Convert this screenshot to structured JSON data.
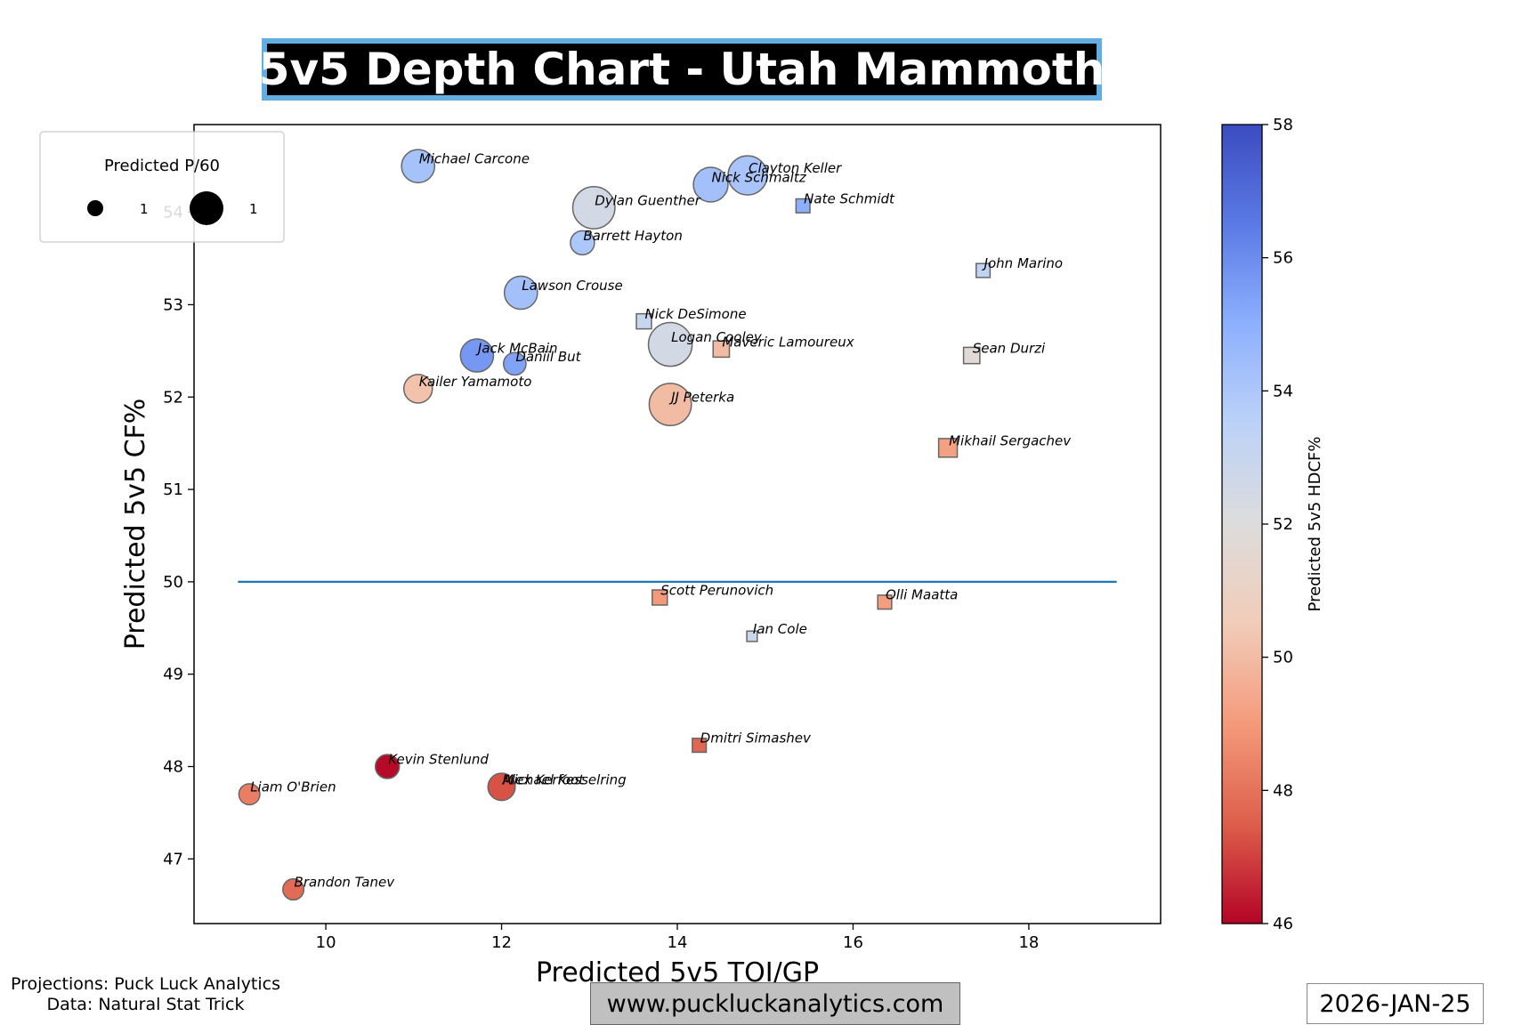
{
  "header": {
    "title": "5v5 Depth Chart - Utah Mammoth"
  },
  "footer": {
    "credit_line1": "Projections: Puck Luck Analytics",
    "credit_line2": "Data: Natural Stat Trick",
    "url": "www.puckluckanalytics.com",
    "date": "2026-JAN-25"
  },
  "chart_data": {
    "type": "scatter",
    "xlabel": "Predicted 5v5 TOI/GP",
    "ylabel": "Predicted 5v5 CF%",
    "xlim": [
      8.5,
      19.5
    ],
    "ylim": [
      46.3,
      54.95
    ],
    "xticks": [
      10,
      12,
      14,
      16,
      18
    ],
    "yticks": [
      47,
      48,
      49,
      50,
      51,
      52,
      53,
      54
    ],
    "grid": false,
    "reference_line": {
      "y": 50,
      "x_from": 9.0,
      "x_to": 19.0,
      "color": "#1f77b4"
    },
    "colorbar": {
      "label": "Predicted 5v5 HDCF%",
      "min": 46,
      "max": 58,
      "ticks": [
        46,
        48,
        50,
        52,
        54,
        56,
        58
      ],
      "colormap": "coolwarm"
    },
    "legend": {
      "title": "Predicted P/60",
      "placement": "top-left",
      "entries": [
        {
          "label": "1",
          "marker": "small-circle"
        },
        {
          "label": "1",
          "marker": "large-circle"
        }
      ]
    },
    "marker_shapes": {
      "circle": "forward",
      "square": "defense"
    },
    "players": [
      {
        "name": "Michael Carcone",
        "toi": 11.05,
        "cf": 54.5,
        "hdcf": 54.2,
        "p60": 1.6,
        "shape": "circle"
      },
      {
        "name": "Clayton Keller",
        "toi": 14.8,
        "cf": 54.4,
        "hdcf": 54.1,
        "p60": 2.0,
        "shape": "circle"
      },
      {
        "name": "Nick Schmaltz",
        "toi": 14.38,
        "cf": 54.3,
        "hdcf": 54.3,
        "p60": 1.7,
        "shape": "circle"
      },
      {
        "name": "Dylan Guenther",
        "toi": 13.05,
        "cf": 54.05,
        "hdcf": 52.5,
        "p60": 2.2,
        "shape": "circle"
      },
      {
        "name": "Nate Schmidt",
        "toi": 15.43,
        "cf": 54.07,
        "hdcf": 55.0,
        "p60": 0.6,
        "shape": "square"
      },
      {
        "name": "Barrett Hayton",
        "toi": 12.92,
        "cf": 53.67,
        "hdcf": 54.0,
        "p60": 1.0,
        "shape": "circle"
      },
      {
        "name": "John Marino",
        "toi": 17.48,
        "cf": 53.37,
        "hdcf": 53.3,
        "p60": 0.6,
        "shape": "square"
      },
      {
        "name": "Lawson Crouse",
        "toi": 12.22,
        "cf": 53.13,
        "hdcf": 54.3,
        "p60": 1.6,
        "shape": "circle"
      },
      {
        "name": "Nick DeSimone",
        "toi": 13.62,
        "cf": 52.82,
        "hdcf": 53.0,
        "p60": 0.7,
        "shape": "square"
      },
      {
        "name": "Logan Cooley",
        "toi": 13.92,
        "cf": 52.57,
        "hdcf": 52.5,
        "p60": 2.3,
        "shape": "circle"
      },
      {
        "name": "Maveric Lamoureux",
        "toi": 14.5,
        "cf": 52.52,
        "hdcf": 50.0,
        "p60": 0.8,
        "shape": "square"
      },
      {
        "name": "Jack McBain",
        "toi": 11.72,
        "cf": 52.45,
        "hdcf": 55.7,
        "p60": 1.6,
        "shape": "circle"
      },
      {
        "name": "Sean Durzi",
        "toi": 17.35,
        "cf": 52.45,
        "hdcf": 51.7,
        "p60": 0.8,
        "shape": "square"
      },
      {
        "name": "Daniil But",
        "toi": 12.15,
        "cf": 52.36,
        "hdcf": 55.4,
        "p60": 0.9,
        "shape": "circle"
      },
      {
        "name": "Kailer Yamamoto",
        "toi": 11.05,
        "cf": 52.09,
        "hdcf": 50.2,
        "p60": 1.3,
        "shape": "circle"
      },
      {
        "name": "JJ Peterka",
        "toi": 13.92,
        "cf": 51.92,
        "hdcf": 50.0,
        "p60": 2.2,
        "shape": "circle"
      },
      {
        "name": "Mikhail Sergachev",
        "toi": 17.08,
        "cf": 51.45,
        "hdcf": 49.2,
        "p60": 1.0,
        "shape": "square"
      },
      {
        "name": "Scott Perunovich",
        "toi": 13.8,
        "cf": 49.83,
        "hdcf": 49.0,
        "p60": 0.7,
        "shape": "square"
      },
      {
        "name": "Olli Maatta",
        "toi": 16.36,
        "cf": 49.78,
        "hdcf": 49.1,
        "p60": 0.6,
        "shape": "square"
      },
      {
        "name": "Ian Cole",
        "toi": 14.85,
        "cf": 49.41,
        "hdcf": 52.8,
        "p60": 0.3,
        "shape": "square"
      },
      {
        "name": "Dmitri Simashev",
        "toi": 14.25,
        "cf": 48.23,
        "hdcf": 47.7,
        "p60": 0.6,
        "shape": "square"
      },
      {
        "name": "Kevin Stenlund",
        "toi": 10.7,
        "cf": 48.0,
        "hdcf": 46.1,
        "p60": 1.0,
        "shape": "circle"
      },
      {
        "name": "Alex Kerfoot",
        "toi": 12.0,
        "cf": 47.78,
        "hdcf": 47.7,
        "p60": 1.2,
        "shape": "circle"
      },
      {
        "name": "Michael Kesselring",
        "toi": 12.0,
        "cf": 47.78,
        "hdcf": 47.3,
        "p60": 1.2,
        "shape": "circle"
      },
      {
        "name": "Liam O'Brien",
        "toi": 9.13,
        "cf": 47.7,
        "hdcf": 48.3,
        "p60": 0.8,
        "shape": "circle"
      },
      {
        "name": "Brandon Tanev",
        "toi": 9.63,
        "cf": 46.67,
        "hdcf": 47.8,
        "p60": 0.8,
        "shape": "circle"
      }
    ]
  }
}
